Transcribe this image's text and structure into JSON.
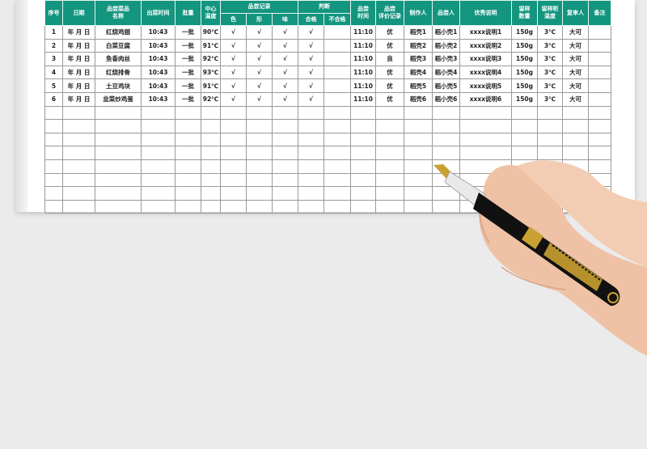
{
  "table": {
    "headers": {
      "no": "序号",
      "date": "日期",
      "dish": "品尝菜品\n名称",
      "serve_time": "出菜时间",
      "batch": "批量",
      "core_temp": "中心\n温度",
      "tasting_record": "品尝记录",
      "color": "色",
      "shape": "形",
      "taste": "味",
      "judge": "判断",
      "pass": "合格",
      "fail": "不合格",
      "taste_time": "品尝\n时间",
      "rating": "品尝\n评价记录",
      "maker": "制作人",
      "taster": "品尝人",
      "excellence": "优秀说明",
      "sample_qty": "留样\n数量",
      "sample_temp": "留样柜\n温度",
      "reviewer": "复审人",
      "remark": "备注"
    },
    "rows": [
      {
        "no": "1",
        "date": "年 月 日",
        "dish": "红烧鸡翅",
        "serve_time": "10:43",
        "batch": "一批",
        "core_temp": "90℃",
        "color": "√",
        "shape": "√",
        "taste": "√",
        "pass": "√",
        "fail": "",
        "taste_time": "11:10",
        "rating": "优",
        "maker": "稻壳1",
        "taster": "稻小壳1",
        "excellence": "xxxx说明1",
        "sample_qty": "150g",
        "sample_temp": "3℃",
        "reviewer": "大可",
        "remark": ""
      },
      {
        "no": "2",
        "date": "年 月 日",
        "dish": "白菜豆腐",
        "serve_time": "10:43",
        "batch": "一批",
        "core_temp": "91℃",
        "color": "√",
        "shape": "√",
        "taste": "√",
        "pass": "√",
        "fail": "",
        "taste_time": "11:10",
        "rating": "优",
        "maker": "稻壳2",
        "taster": "稻小壳2",
        "excellence": "xxxx说明2",
        "sample_qty": "150g",
        "sample_temp": "3℃",
        "reviewer": "大可",
        "remark": ""
      },
      {
        "no": "3",
        "date": "年 月 日",
        "dish": "鱼香肉丝",
        "serve_time": "10:43",
        "batch": "一批",
        "core_temp": "92℃",
        "color": "√",
        "shape": "√",
        "taste": "√",
        "pass": "√",
        "fail": "",
        "taste_time": "11:10",
        "rating": "良",
        "maker": "稻壳3",
        "taster": "稻小壳3",
        "excellence": "xxxx说明3",
        "sample_qty": "150g",
        "sample_temp": "3℃",
        "reviewer": "大可",
        "remark": ""
      },
      {
        "no": "4",
        "date": "年 月 日",
        "dish": "红烧排骨",
        "serve_time": "10:43",
        "batch": "一批",
        "core_temp": "93℃",
        "color": "√",
        "shape": "√",
        "taste": "√",
        "pass": "√",
        "fail": "",
        "taste_time": "11:10",
        "rating": "优",
        "maker": "稻壳4",
        "taster": "稻小壳4",
        "excellence": "xxxx说明4",
        "sample_qty": "150g",
        "sample_temp": "3℃",
        "reviewer": "大可",
        "remark": ""
      },
      {
        "no": "5",
        "date": "年 月 日",
        "dish": "土豆鸡块",
        "serve_time": "10:43",
        "batch": "一批",
        "core_temp": "91℃",
        "color": "√",
        "shape": "√",
        "taste": "√",
        "pass": "√",
        "fail": "",
        "taste_time": "11:10",
        "rating": "优",
        "maker": "稻壳5",
        "taster": "稻小壳5",
        "excellence": "xxxx说明5",
        "sample_qty": "150g",
        "sample_temp": "3℃",
        "reviewer": "大可",
        "remark": ""
      },
      {
        "no": "6",
        "date": "年 月 日",
        "dish": "韭菜炒鸡蛋",
        "serve_time": "10:43",
        "batch": "一批",
        "core_temp": "92℃",
        "color": "√",
        "shape": "√",
        "taste": "√",
        "pass": "√",
        "fail": "",
        "taste_time": "11:10",
        "rating": "优",
        "maker": "稻壳6",
        "taster": "稻小壳6",
        "excellence": "xxxx说明6",
        "sample_qty": "150g",
        "sample_temp": "3℃",
        "reviewer": "大可",
        "remark": ""
      }
    ],
    "empty_rows": 8
  },
  "colors": {
    "header": "#13957f",
    "background": "#ebebeb",
    "skin": "#efc2a6",
    "pen_body": "#111111",
    "pen_gold": "#c9a032"
  }
}
